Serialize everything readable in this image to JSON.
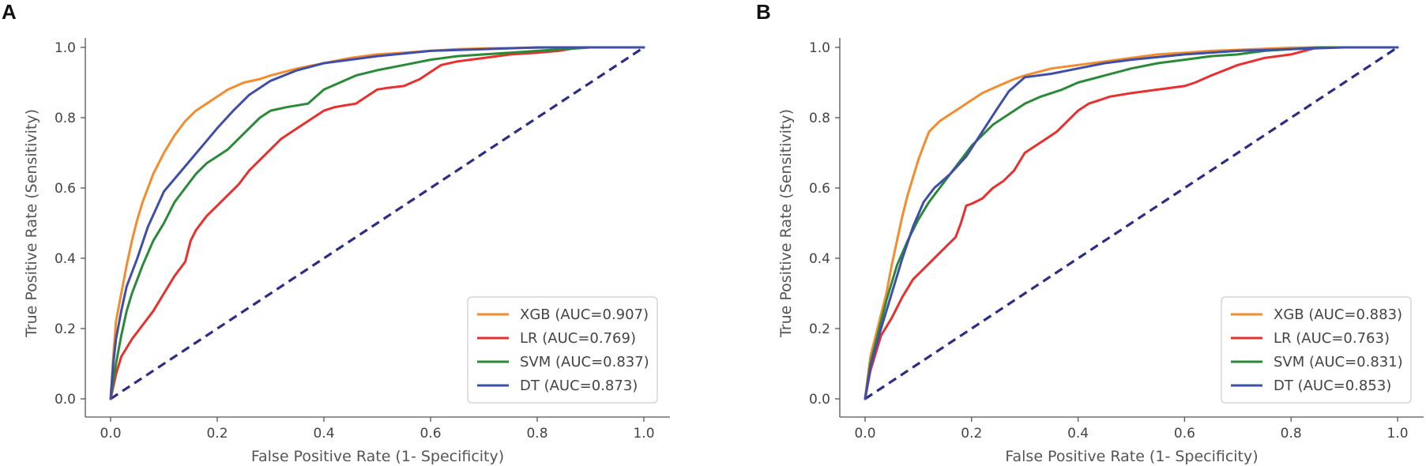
{
  "figure": {
    "panel_labels": [
      "A",
      "B"
    ]
  },
  "chart_data": [
    {
      "panel": "A",
      "type": "line",
      "xlabel": "False Positive Rate (1- Specificity)",
      "ylabel": "True Positive Rate (Sensitivity)",
      "xlim": [
        0.0,
        1.0
      ],
      "ylim": [
        0.0,
        1.0
      ],
      "xticks": [
        "0.0",
        "0.2",
        "0.4",
        "0.6",
        "0.8",
        "1.0"
      ],
      "yticks": [
        "0.0",
        "0.2",
        "0.4",
        "0.6",
        "0.8",
        "1.0"
      ],
      "legend_position": "lower-right",
      "diagonal": {
        "color": "#2d2d86",
        "x": [
          0,
          1
        ],
        "y": [
          0,
          1
        ]
      },
      "series": [
        {
          "name": "XGB (AUC=0.907)",
          "color": "#f48c2e",
          "x": [
            0,
            0.005,
            0.01,
            0.02,
            0.03,
            0.04,
            0.05,
            0.06,
            0.07,
            0.08,
            0.09,
            0.1,
            0.12,
            0.14,
            0.16,
            0.18,
            0.2,
            0.22,
            0.25,
            0.28,
            0.3,
            0.35,
            0.4,
            0.45,
            0.5,
            0.55,
            0.6,
            0.65,
            0.7,
            0.75,
            0.8,
            0.85,
            0.9,
            1.0
          ],
          "y": [
            0,
            0.12,
            0.22,
            0.3,
            0.38,
            0.45,
            0.51,
            0.56,
            0.6,
            0.64,
            0.67,
            0.7,
            0.75,
            0.79,
            0.82,
            0.84,
            0.86,
            0.88,
            0.9,
            0.91,
            0.92,
            0.94,
            0.955,
            0.97,
            0.98,
            0.985,
            0.99,
            0.995,
            0.997,
            0.998,
            0.999,
            1.0,
            1.0,
            1.0
          ]
        },
        {
          "name": "LR (AUC=0.769)",
          "color": "#e8302e",
          "x": [
            0,
            0.01,
            0.02,
            0.04,
            0.06,
            0.08,
            0.1,
            0.12,
            0.14,
            0.15,
            0.16,
            0.18,
            0.2,
            0.22,
            0.24,
            0.26,
            0.28,
            0.3,
            0.32,
            0.34,
            0.36,
            0.38,
            0.4,
            0.42,
            0.44,
            0.46,
            0.48,
            0.5,
            0.52,
            0.55,
            0.58,
            0.6,
            0.62,
            0.65,
            0.7,
            0.75,
            0.8,
            0.84,
            0.88,
            1.0
          ],
          "y": [
            0,
            0.07,
            0.12,
            0.17,
            0.21,
            0.25,
            0.3,
            0.35,
            0.39,
            0.45,
            0.48,
            0.52,
            0.55,
            0.58,
            0.61,
            0.65,
            0.68,
            0.71,
            0.74,
            0.76,
            0.78,
            0.8,
            0.82,
            0.83,
            0.835,
            0.84,
            0.86,
            0.88,
            0.885,
            0.89,
            0.91,
            0.93,
            0.95,
            0.96,
            0.97,
            0.98,
            0.985,
            0.99,
            1.0,
            1.0
          ]
        },
        {
          "name": "SVM (AUC=0.837)",
          "color": "#2b8a3a",
          "x": [
            0,
            0.01,
            0.02,
            0.03,
            0.04,
            0.05,
            0.06,
            0.08,
            0.1,
            0.12,
            0.14,
            0.16,
            0.18,
            0.2,
            0.22,
            0.24,
            0.26,
            0.28,
            0.3,
            0.33,
            0.37,
            0.4,
            0.43,
            0.46,
            0.5,
            0.55,
            0.6,
            0.65,
            0.7,
            0.75,
            0.8,
            0.85,
            0.9,
            1.0
          ],
          "y": [
            0,
            0.1,
            0.18,
            0.25,
            0.3,
            0.34,
            0.38,
            0.45,
            0.5,
            0.56,
            0.6,
            0.64,
            0.67,
            0.69,
            0.71,
            0.74,
            0.77,
            0.8,
            0.82,
            0.83,
            0.84,
            0.88,
            0.9,
            0.92,
            0.935,
            0.95,
            0.965,
            0.975,
            0.98,
            0.985,
            0.99,
            0.995,
            1.0,
            1.0
          ]
        },
        {
          "name": "DT (AUC=0.873)",
          "color": "#3f4fa8",
          "x": [
            0,
            0.005,
            0.01,
            0.02,
            0.03,
            0.05,
            0.07,
            0.1,
            0.15,
            0.2,
            0.23,
            0.26,
            0.3,
            0.35,
            0.4,
            0.5,
            0.6,
            0.7,
            0.8,
            0.9,
            1.0
          ],
          "y": [
            0,
            0.1,
            0.17,
            0.25,
            0.32,
            0.4,
            0.49,
            0.59,
            0.68,
            0.77,
            0.82,
            0.865,
            0.905,
            0.935,
            0.955,
            0.975,
            0.99,
            0.995,
            1.0,
            1.0,
            1.0
          ]
        }
      ]
    },
    {
      "panel": "B",
      "type": "line",
      "xlabel": "False Positive Rate (1- Specificity)",
      "ylabel": "True Positive Rate (Sensitivity)",
      "xlim": [
        0.0,
        1.0
      ],
      "ylim": [
        0.0,
        1.0
      ],
      "xticks": [
        "0.0",
        "0.2",
        "0.4",
        "0.6",
        "0.8",
        "1.0"
      ],
      "yticks": [
        "0.0",
        "0.2",
        "0.4",
        "0.6",
        "0.8",
        "1.0"
      ],
      "legend_position": "lower-right",
      "diagonal": {
        "color": "#2d2d86",
        "x": [
          0,
          1
        ],
        "y": [
          0,
          1
        ]
      },
      "series": [
        {
          "name": "XGB (AUC=0.883)",
          "color": "#f48c2e",
          "x": [
            0,
            0.01,
            0.02,
            0.03,
            0.04,
            0.05,
            0.06,
            0.07,
            0.08,
            0.09,
            0.1,
            0.11,
            0.12,
            0.14,
            0.16,
            0.18,
            0.2,
            0.22,
            0.25,
            0.28,
            0.3,
            0.35,
            0.4,
            0.45,
            0.5,
            0.55,
            0.6,
            0.65,
            0.7,
            0.75,
            0.8,
            0.85,
            1.0
          ],
          "y": [
            0,
            0.12,
            0.18,
            0.24,
            0.3,
            0.38,
            0.45,
            0.52,
            0.58,
            0.63,
            0.68,
            0.72,
            0.76,
            0.79,
            0.81,
            0.83,
            0.85,
            0.87,
            0.89,
            0.91,
            0.92,
            0.94,
            0.95,
            0.96,
            0.97,
            0.98,
            0.985,
            0.99,
            0.993,
            0.996,
            0.999,
            1.0,
            1.0
          ]
        },
        {
          "name": "LR (AUC=0.763)",
          "color": "#e8302e",
          "x": [
            0,
            0.01,
            0.02,
            0.03,
            0.05,
            0.07,
            0.09,
            0.11,
            0.13,
            0.15,
            0.17,
            0.18,
            0.19,
            0.2,
            0.22,
            0.24,
            0.26,
            0.28,
            0.3,
            0.32,
            0.34,
            0.36,
            0.38,
            0.4,
            0.42,
            0.44,
            0.46,
            0.5,
            0.55,
            0.6,
            0.62,
            0.65,
            0.7,
            0.75,
            0.8,
            0.85,
            1.0
          ],
          "y": [
            0,
            0.08,
            0.13,
            0.18,
            0.23,
            0.29,
            0.34,
            0.37,
            0.4,
            0.43,
            0.46,
            0.5,
            0.55,
            0.555,
            0.57,
            0.6,
            0.62,
            0.65,
            0.7,
            0.72,
            0.74,
            0.76,
            0.79,
            0.82,
            0.84,
            0.85,
            0.86,
            0.87,
            0.88,
            0.89,
            0.9,
            0.92,
            0.95,
            0.97,
            0.98,
            1.0,
            1.0
          ]
        },
        {
          "name": "SVM (AUC=0.831)",
          "color": "#2b8a3a",
          "x": [
            0,
            0.01,
            0.02,
            0.03,
            0.04,
            0.05,
            0.06,
            0.08,
            0.1,
            0.12,
            0.14,
            0.16,
            0.18,
            0.2,
            0.22,
            0.24,
            0.26,
            0.28,
            0.3,
            0.33,
            0.37,
            0.4,
            0.45,
            0.5,
            0.55,
            0.6,
            0.65,
            0.7,
            0.75,
            0.8,
            0.85,
            1.0
          ],
          "y": [
            0,
            0.1,
            0.16,
            0.22,
            0.28,
            0.33,
            0.38,
            0.45,
            0.51,
            0.56,
            0.6,
            0.64,
            0.68,
            0.72,
            0.75,
            0.78,
            0.8,
            0.82,
            0.84,
            0.86,
            0.88,
            0.9,
            0.92,
            0.94,
            0.955,
            0.965,
            0.975,
            0.98,
            0.99,
            0.995,
            1.0,
            1.0
          ]
        },
        {
          "name": "DT (AUC=0.853)",
          "color": "#3f4fa8",
          "x": [
            0,
            0.01,
            0.03,
            0.05,
            0.07,
            0.09,
            0.11,
            0.13,
            0.16,
            0.19,
            0.22,
            0.25,
            0.27,
            0.3,
            0.35,
            0.4,
            0.45,
            0.5,
            0.6,
            0.7,
            0.8,
            0.9,
            1.0
          ],
          "y": [
            0,
            0.09,
            0.2,
            0.3,
            0.4,
            0.49,
            0.56,
            0.6,
            0.64,
            0.69,
            0.76,
            0.83,
            0.875,
            0.915,
            0.925,
            0.94,
            0.955,
            0.965,
            0.98,
            0.99,
            0.995,
            1.0,
            1.0
          ]
        }
      ]
    }
  ]
}
